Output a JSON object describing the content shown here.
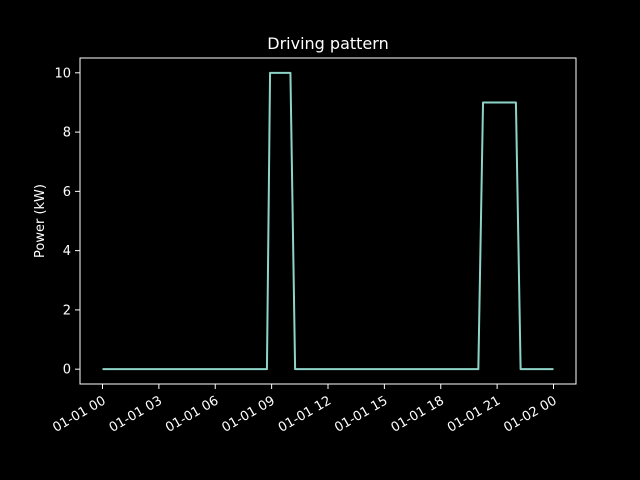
{
  "chart_data": {
    "type": "line",
    "title": "Driving pattern",
    "xlabel": "",
    "ylabel": "Power (kW)",
    "xlim": [
      "2000-01-01T00:00",
      "2000-01-02T00:00"
    ],
    "ylim": [
      -0.5,
      10.5
    ],
    "grid": false,
    "x_ticks": [
      "01-01 00",
      "01-01 03",
      "01-01 06",
      "01-01 09",
      "01-01 12",
      "01-01 15",
      "01-01 18",
      "01-01 21",
      "01-02 00"
    ],
    "y_ticks": [
      "0",
      "2",
      "4",
      "6",
      "8",
      "10"
    ],
    "series": [
      {
        "x": [
          "2000-01-01T00:00",
          "2000-01-01T08:45",
          "2000-01-01T08:55",
          "2000-01-01T10:00",
          "2000-01-01T10:15",
          "2000-01-01T20:00",
          "2000-01-01T20:15",
          "2000-01-01T22:00",
          "2000-01-01T22:15",
          "2000-01-02T00:00"
        ],
        "x_hours": [
          0,
          8.75,
          8.917,
          10.0,
          10.25,
          20.0,
          20.25,
          22.0,
          22.25,
          24.0
        ],
        "values": [
          0,
          0,
          10,
          10,
          0,
          0,
          9,
          9,
          0,
          0
        ],
        "color": "#8dd3c7"
      }
    ]
  },
  "colors": {
    "background": "#000000",
    "axes": "#ffffff",
    "line": "#8dd3c7"
  }
}
